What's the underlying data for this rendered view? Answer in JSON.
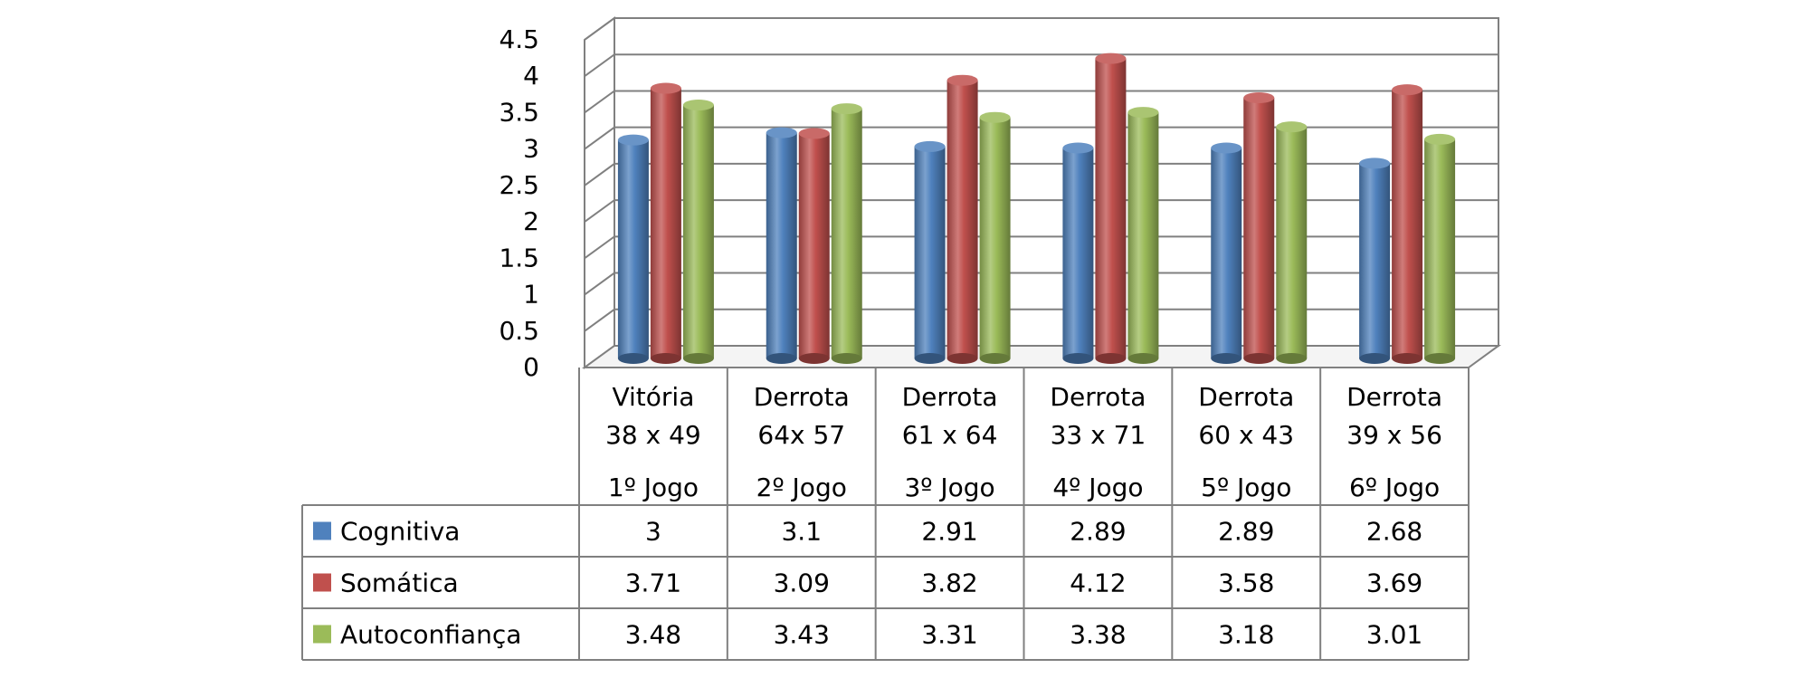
{
  "chart_data": {
    "type": "bar",
    "title": "",
    "xlabel": "",
    "ylabel": "",
    "ylim": [
      0,
      4.5
    ],
    "yticks": [
      "0",
      "0.5",
      "1",
      "1.5",
      "2",
      "2.5",
      "3",
      "3.5",
      "4",
      "4.5"
    ],
    "grid": true,
    "three_d": true,
    "legend_placement": "table-left",
    "categories": [
      [
        "Vitória",
        "38 x 49",
        "1º Jogo"
      ],
      [
        "Derrota",
        "64x 57",
        "2º Jogo"
      ],
      [
        "Derrota",
        "61 x 64",
        "3º Jogo"
      ],
      [
        "Derrota",
        "33 x 71",
        "4º Jogo"
      ],
      [
        "Derrota",
        "60 x 43",
        "5º Jogo"
      ],
      [
        "Derrota",
        "39 x 56",
        "6º Jogo"
      ]
    ],
    "series": [
      {
        "name": "Cognitiva",
        "color": "#4F81BD",
        "values": [
          3,
          3.1,
          2.91,
          2.89,
          2.89,
          2.68
        ],
        "labels": [
          "3",
          "3.1",
          "2.91",
          "2.89",
          "2.89",
          "2.68"
        ]
      },
      {
        "name": "Somática",
        "color": "#C0504D",
        "values": [
          3.71,
          3.09,
          3.82,
          4.12,
          3.58,
          3.69
        ],
        "labels": [
          "3.71",
          "3.09",
          "3.82",
          "4.12",
          "3.58",
          "3.69"
        ]
      },
      {
        "name": "Autoconfiança",
        "color": "#9BBB59",
        "values": [
          3.48,
          3.43,
          3.31,
          3.38,
          3.18,
          3.01
        ],
        "labels": [
          "3.48",
          "3.43",
          "3.31",
          "3.38",
          "3.18",
          "3.01"
        ]
      }
    ]
  }
}
